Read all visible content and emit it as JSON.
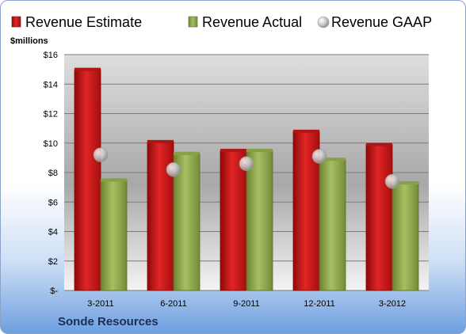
{
  "chart_data": {
    "type": "bar",
    "title": "",
    "ylabel": "$millions",
    "xlabel": "",
    "categories": [
      "3-2011",
      "6-2011",
      "9-2011",
      "12-2011",
      "3-2012"
    ],
    "series": [
      {
        "name": "Revenue Estimate",
        "kind": "bar",
        "color": "#cc1111",
        "values": [
          15.0,
          10.1,
          9.5,
          10.8,
          9.9
        ]
      },
      {
        "name": "Revenue Actual",
        "kind": "bar",
        "color": "#8fa94b",
        "values": [
          7.5,
          9.3,
          9.5,
          8.9,
          7.3
        ]
      },
      {
        "name": "Revenue GAAP",
        "kind": "marker",
        "color": "#c8c8c8",
        "values": [
          9.2,
          8.2,
          8.6,
          9.1,
          7.4
        ]
      }
    ],
    "ylim": [
      0,
      16
    ],
    "yticks": [
      0,
      2,
      4,
      6,
      8,
      10,
      12,
      14,
      16
    ],
    "ytick_labels": [
      "$-",
      "$2",
      "$4",
      "$6",
      "$8",
      "$10",
      "$12",
      "$14",
      "$16"
    ],
    "grid": true,
    "legend_position": "top"
  },
  "footer": {
    "company": "Sonde Resources"
  }
}
